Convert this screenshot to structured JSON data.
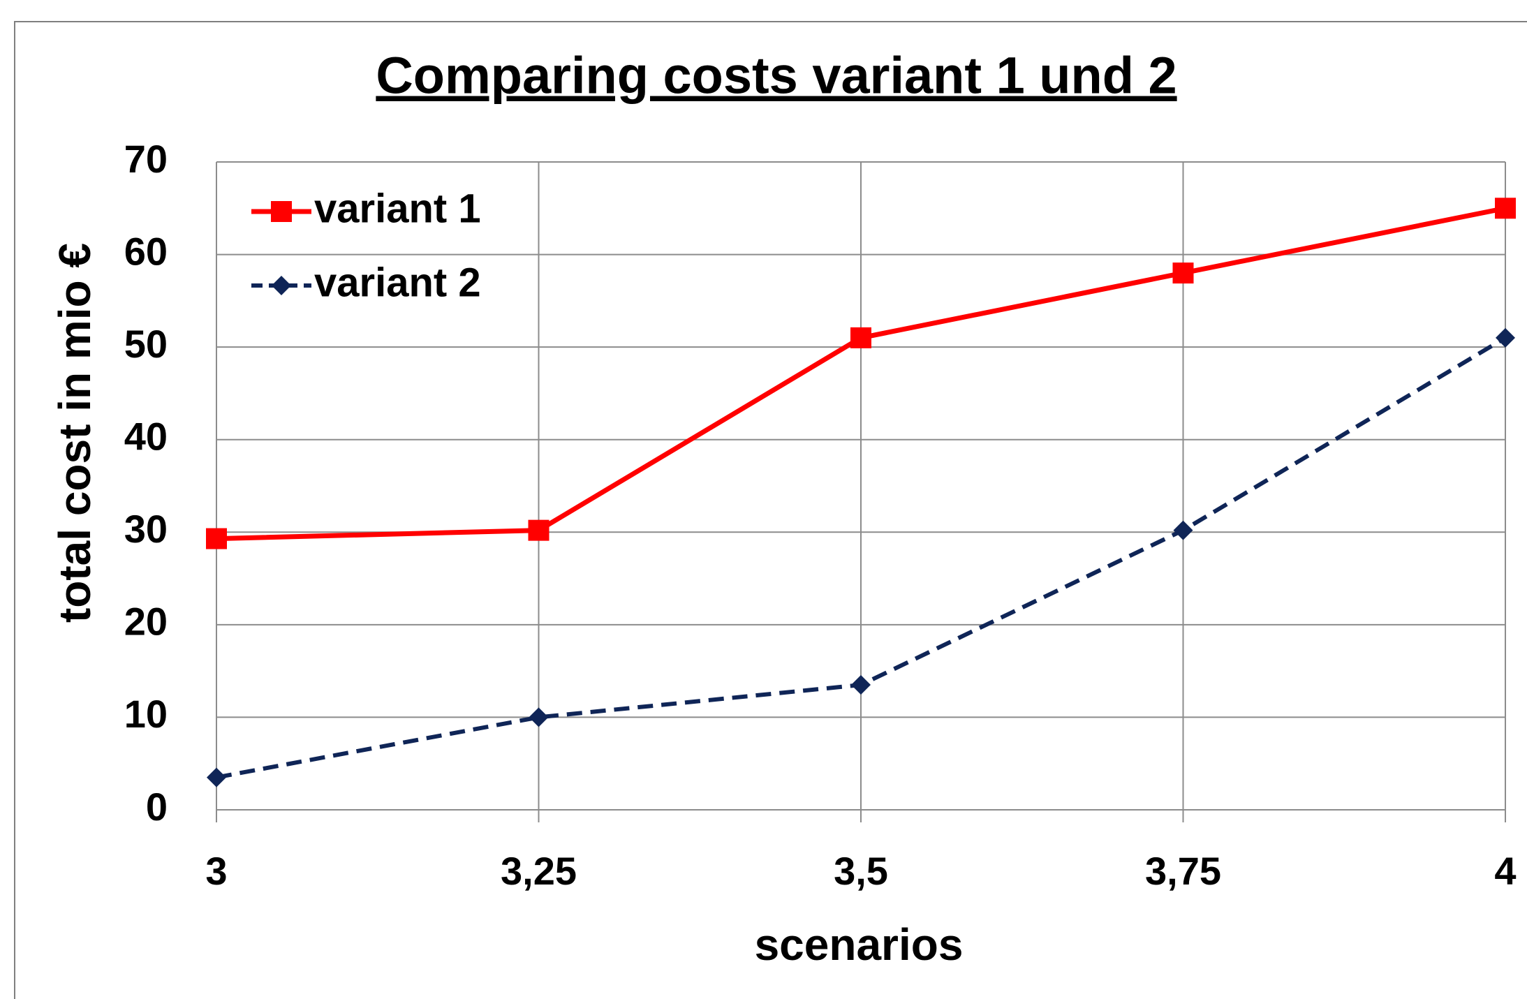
{
  "chart_data": {
    "type": "line",
    "title": "Comparing costs variant 1 und 2",
    "x_label": "scenarios",
    "y_label": "total cost in mio  €",
    "x": [
      3,
      3.25,
      3.5,
      3.75,
      4
    ],
    "series": [
      {
        "name": "variant 1",
        "color": "#ff0000",
        "marker": "square",
        "dash": false,
        "values": [
          29.3,
          30.2,
          51,
          58,
          65
        ]
      },
      {
        "name": "variant 2",
        "color": "#0f2557",
        "marker": "diamond",
        "dash": true,
        "values": [
          3.5,
          10,
          13.5,
          30.2,
          51
        ]
      }
    ],
    "xlim": [
      3,
      4
    ],
    "xticks": [
      3,
      {
        "value": 3.25,
        "label": "3,25"
      },
      {
        "value": 3.5,
        "label": "3,5"
      },
      {
        "value": 3.75,
        "label": "3,75"
      },
      4
    ],
    "ylim": [
      0,
      70
    ],
    "yticks": [
      0,
      10,
      20,
      30,
      40,
      50,
      60,
      70
    ],
    "grid": true,
    "legend": "upper left"
  }
}
